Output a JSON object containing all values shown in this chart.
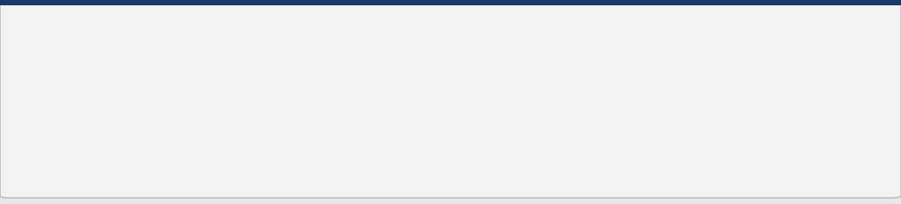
{
  "bg_color": "#e8e8e8",
  "card_bg": "#f2f2f2",
  "card_border": "#c0c0c0",
  "top_bar_color": "#1a3a6b",
  "input_box_border": "#7ab0d8",
  "input_box_bg": "#ffffff",
  "text_color": "#1a1a1a",
  "font_size_body": 13.5,
  "font_size_formula": 14.5,
  "small_box_color": "#b8cfe0",
  "small_box_border": "#8899aa"
}
